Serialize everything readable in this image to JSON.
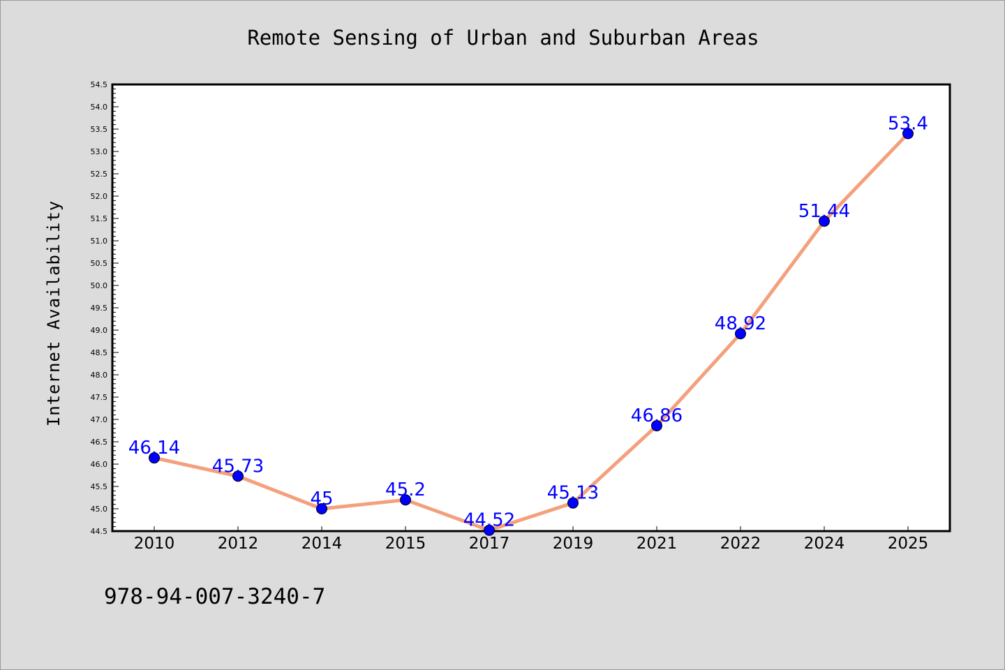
{
  "chart_data": {
    "type": "line",
    "title": "Remote Sensing of Urban and Suburban Areas",
    "xlabel": "",
    "ylabel": "Internet Availability",
    "categories": [
      "2010",
      "2012",
      "2014",
      "2015",
      "2017",
      "2019",
      "2021",
      "2022",
      "2024",
      "2025"
    ],
    "series": [
      {
        "values": [
          46.14,
          45.73,
          45,
          45.2,
          44.52,
          45.13,
          46.86,
          48.92,
          51.44,
          53.4
        ],
        "labels": [
          "46.14",
          "45.73",
          "45",
          "45.2",
          "44.52",
          "45.13",
          "46.86",
          "48.92",
          "51.44",
          "53.4"
        ],
        "line_color": "#f4a07c",
        "marker_color": "#0000ff",
        "label_color": "#0000ff"
      }
    ],
    "ylim": [
      44.5,
      54.5
    ],
    "yticks": [
      "44.5",
      "45.0",
      "45.5",
      "46.0",
      "46.5",
      "47.0",
      "47.5",
      "48.0",
      "48.5",
      "49.0",
      "49.5",
      "50.0",
      "50.5",
      "51.0",
      "51.5",
      "52.0",
      "52.5",
      "53.0",
      "53.5",
      "54.0",
      "54.5"
    ],
    "grid": false,
    "legend": "none",
    "background_color": "#dcdcdc",
    "plot_background": "#ffffff"
  },
  "footer": {
    "isbn": "978-94-007-3240-7"
  }
}
